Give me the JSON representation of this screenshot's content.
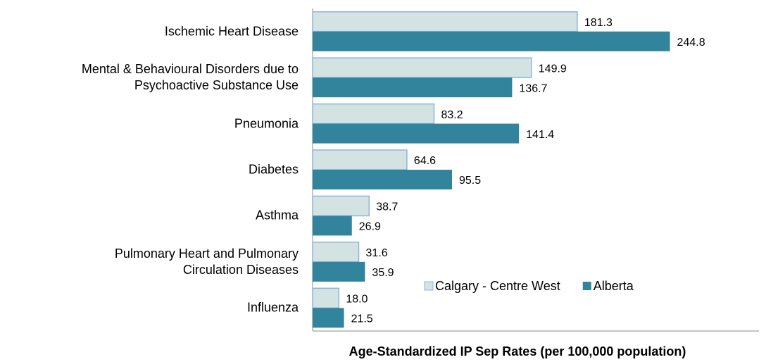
{
  "chart_data": {
    "type": "hbar",
    "categories": [
      "Ischemic Heart Disease",
      "Mental & Behavioural Disorders due to\nPsychoactive Substance Use",
      "Pneumonia",
      "Diabetes",
      "Asthma",
      "Pulmonary Heart and Pulmonary\nCirculation Diseases",
      "Influenza"
    ],
    "series": [
      {
        "name": "Calgary - Centre West",
        "color": "#d3e3e1",
        "edge": "#8eb4e3",
        "values": [
          181.3,
          149.9,
          83.2,
          64.6,
          38.7,
          31.6,
          18.0
        ],
        "value_labels": [
          "181.3",
          "149.9",
          "83.2",
          "64.6",
          "38.7",
          "31.6",
          "18.0"
        ]
      },
      {
        "name": "Alberta",
        "color": "#31849b",
        "values": [
          244.8,
          136.7,
          141.4,
          95.5,
          26.9,
          35.9,
          21.5
        ],
        "value_labels": [
          "244.8",
          "136.7",
          "141.4",
          "95.5",
          "26.9",
          "35.9",
          "21.5"
        ]
      }
    ],
    "xlabel": "Age-Standardized IP Sep Rates (per 100,000 population)",
    "xlim": [
      0,
      300
    ],
    "legend": "lower right"
  }
}
